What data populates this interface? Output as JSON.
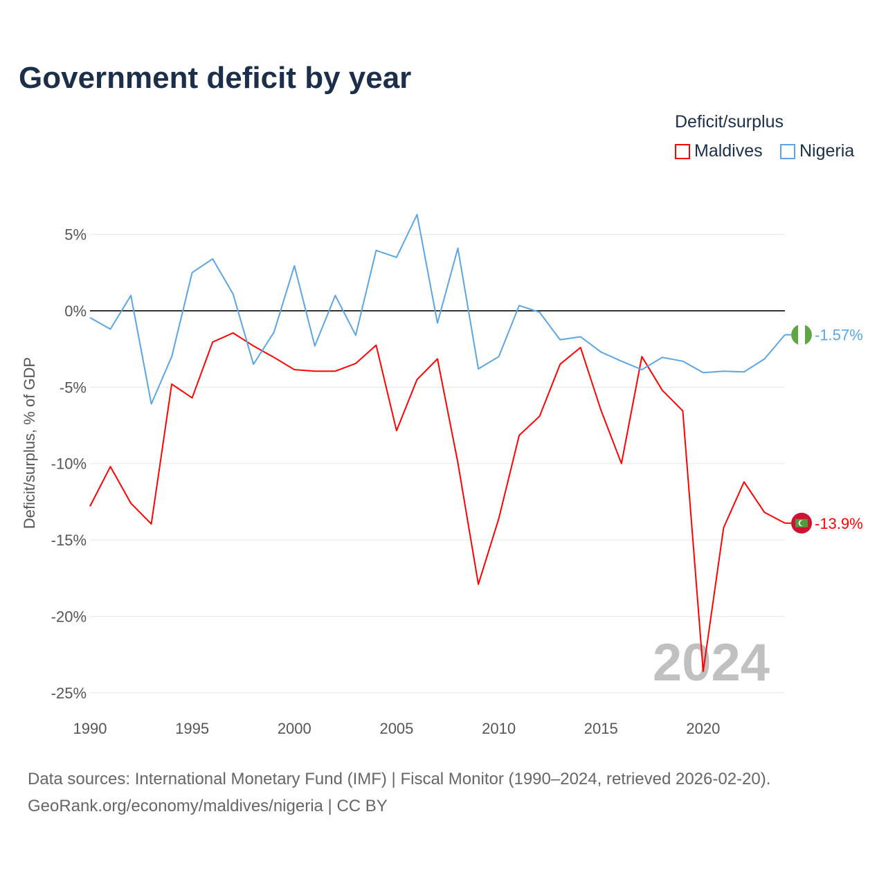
{
  "title": "Government deficit by year",
  "legend": {
    "title": "Deficit/surplus",
    "items": [
      {
        "name": "Maldives",
        "color": "#ff0000"
      },
      {
        "name": "Nigeria",
        "color": "#5aa5e6"
      }
    ]
  },
  "footer": {
    "line1": "Data sources: International Monetary Fund (IMF) | Fiscal Monitor (1990–2024, retrieved 2026-02-20).",
    "line2": "GeoRank.org/economy/maldives/nigeria | CC BY"
  },
  "chart_data": {
    "type": "line",
    "title": "Government deficit by year",
    "xlabel": "",
    "ylabel": "Deficit/surplus, % of GDP",
    "xlim": [
      1990,
      2024
    ],
    "ylim": [
      -25,
      5
    ],
    "x_ticks": [
      1990,
      1995,
      2000,
      2005,
      2010,
      2015,
      2020
    ],
    "x_tick_labels": [
      "1990",
      "1995",
      "2000",
      "2005",
      "2010",
      "2015",
      "2020"
    ],
    "y_ticks": [
      5,
      0,
      -5,
      -10,
      -15,
      -20,
      -25
    ],
    "y_tick_labels": [
      "5%",
      "0%",
      "-5%",
      "-10%",
      "-15%",
      "-20%",
      "-25%"
    ],
    "grid": true,
    "legend_position": "top-right",
    "watermark_year": "2024",
    "x": [
      1990,
      1991,
      1992,
      1993,
      1994,
      1995,
      1996,
      1997,
      1998,
      1999,
      2000,
      2001,
      2002,
      2003,
      2004,
      2005,
      2006,
      2007,
      2008,
      2009,
      2010,
      2011,
      2012,
      2013,
      2014,
      2015,
      2016,
      2017,
      2018,
      2019,
      2020,
      2021,
      2022,
      2023,
      2024
    ],
    "series": [
      {
        "name": "Maldives",
        "color": "#ff0000",
        "end_label": "-13.9%",
        "values": [
          -12.8,
          -10.2,
          -12.6,
          -13.95,
          -4.8,
          -5.7,
          -2.05,
          -1.45,
          -2.3,
          -3.05,
          -3.85,
          -3.95,
          -3.95,
          -3.45,
          -2.25,
          -7.85,
          -4.5,
          -3.15,
          -9.95,
          -17.9,
          -13.6,
          -8.15,
          -6.9,
          -3.5,
          -2.4,
          -6.5,
          -10.0,
          -3.0,
          -5.2,
          -6.55,
          -23.6,
          -14.2,
          -11.2,
          -13.2,
          -13.9
        ]
      },
      {
        "name": "Nigeria",
        "color": "#5aa5e6",
        "end_label": "-1.57%",
        "values": [
          -0.45,
          -1.2,
          1.0,
          -6.1,
          -3.0,
          2.5,
          3.4,
          1.1,
          -3.5,
          -1.4,
          2.95,
          -2.3,
          1.0,
          -1.6,
          3.95,
          3.5,
          6.3,
          -0.8,
          4.1,
          -3.8,
          -3.0,
          0.35,
          -0.1,
          -1.9,
          -1.7,
          -2.7,
          -3.3,
          -3.85,
          -3.05,
          -3.3,
          -4.05,
          -3.95,
          -4.0,
          -3.15,
          -1.57
        ]
      }
    ]
  }
}
